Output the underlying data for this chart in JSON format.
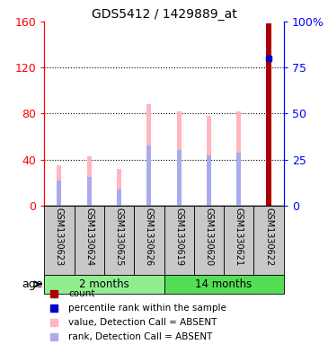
{
  "title": "GDS5412 / 1429889_at",
  "samples": [
    "GSM1330623",
    "GSM1330624",
    "GSM1330625",
    "GSM1330626",
    "GSM1330619",
    "GSM1330620",
    "GSM1330621",
    "GSM1330622"
  ],
  "value_absent": [
    35,
    43,
    32,
    88,
    82,
    78,
    82,
    0
  ],
  "rank_absent": [
    22,
    25,
    14,
    52,
    48,
    44,
    46,
    0
  ],
  "count_value": [
    0,
    0,
    0,
    0,
    0,
    0,
    0,
    158
  ],
  "percentile_rank": [
    0,
    0,
    0,
    0,
    0,
    0,
    0,
    80
  ],
  "ylim_left": [
    0,
    160
  ],
  "ylim_right": [
    0,
    100
  ],
  "yticks_left": [
    0,
    40,
    80,
    120,
    160
  ],
  "yticks_right": [
    0,
    25,
    50,
    75,
    100
  ],
  "yticklabels_right": [
    "0",
    "25",
    "50",
    "75",
    "100%"
  ],
  "groups": [
    {
      "label": "2 months",
      "indices": [
        0,
        3
      ],
      "color": "#90EE90"
    },
    {
      "label": "14 months",
      "indices": [
        4,
        7
      ],
      "color": "#55DD55"
    }
  ],
  "bar_width": 0.15,
  "rank_bar_width": 0.15,
  "color_value_absent": "#FFB6C1",
  "color_rank_absent": "#AAAAEE",
  "color_count": "#AA0000",
  "color_percentile": "#0000CC",
  "bg_color": "#C8C8C8",
  "age_label": "age"
}
